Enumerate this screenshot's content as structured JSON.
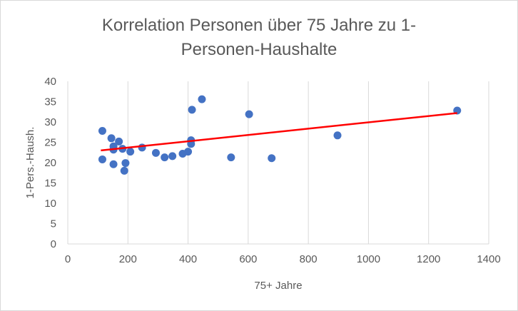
{
  "chart_data": {
    "type": "scatter",
    "title_lines": [
      "Korrelation Personen über 75 Jahre zu 1-",
      "Personen-Haushalte"
    ],
    "xlabel": "75+ Jahre",
    "ylabel": "1-Pers.-Haush.",
    "xlim": [
      0,
      1400
    ],
    "ylim": [
      0,
      40
    ],
    "x_ticks": [
      "0",
      "200",
      "400",
      "600",
      "800",
      "1000",
      "1200",
      "1400"
    ],
    "y_ticks": [
      "0",
      "5",
      "10",
      "15",
      "20",
      "25",
      "30",
      "35",
      "40"
    ],
    "grid": "vertical",
    "legend": "none",
    "points": [
      {
        "x": 115,
        "y": 27.8
      },
      {
        "x": 115,
        "y": 20.8
      },
      {
        "x": 145,
        "y": 26.0
      },
      {
        "x": 152,
        "y": 24.0
      },
      {
        "x": 152,
        "y": 23.2
      },
      {
        "x": 152,
        "y": 19.6
      },
      {
        "x": 170,
        "y": 25.2
      },
      {
        "x": 182,
        "y": 23.4
      },
      {
        "x": 188,
        "y": 18.0
      },
      {
        "x": 192,
        "y": 19.9
      },
      {
        "x": 208,
        "y": 22.7
      },
      {
        "x": 247,
        "y": 23.7
      },
      {
        "x": 293,
        "y": 22.4
      },
      {
        "x": 322,
        "y": 21.3
      },
      {
        "x": 348,
        "y": 21.6
      },
      {
        "x": 382,
        "y": 22.2
      },
      {
        "x": 400,
        "y": 22.7
      },
      {
        "x": 410,
        "y": 24.6
      },
      {
        "x": 410,
        "y": 25.5
      },
      {
        "x": 413,
        "y": 33.0
      },
      {
        "x": 446,
        "y": 35.6
      },
      {
        "x": 543,
        "y": 21.3
      },
      {
        "x": 603,
        "y": 31.9
      },
      {
        "x": 678,
        "y": 21.1
      },
      {
        "x": 897,
        "y": 26.7
      },
      {
        "x": 1295,
        "y": 32.8
      }
    ],
    "trendline": {
      "x1": 110,
      "y1": 23.0,
      "x2": 1295,
      "y2": 32.2
    },
    "colors": {
      "points": "#4472c4",
      "trendline": "#ff0000",
      "grid": "#d9d9d9",
      "text": "#595959"
    }
  }
}
